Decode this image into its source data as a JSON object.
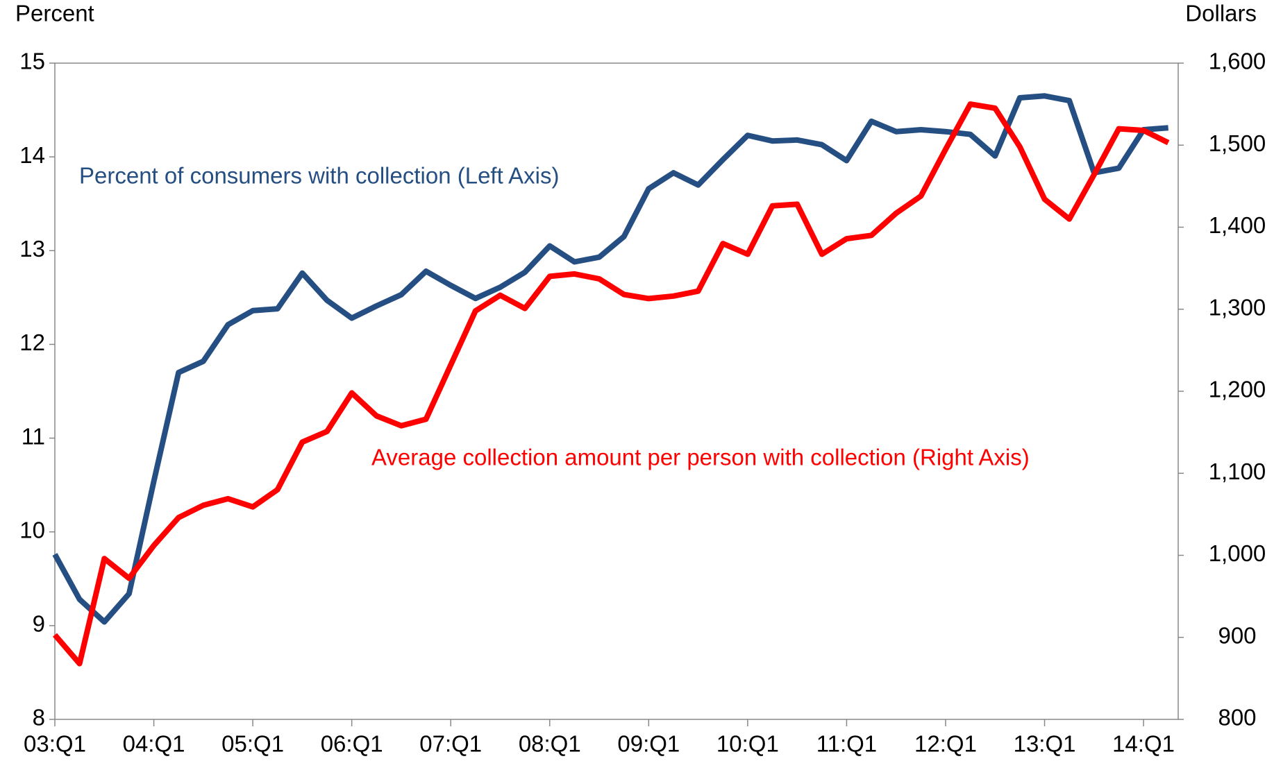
{
  "chart_data": {
    "type": "line",
    "y_label": "Percent",
    "y2_label": "Dollars",
    "categories": [
      "03:Q1",
      null,
      null,
      null,
      "04:Q1",
      null,
      null,
      null,
      "05:Q1",
      null,
      null,
      null,
      "06:Q1",
      null,
      null,
      null,
      "07:Q1",
      null,
      null,
      null,
      "08:Q1",
      null,
      null,
      null,
      "09:Q1",
      null,
      null,
      null,
      "10:Q1",
      null,
      null,
      null,
      "11:Q1",
      null,
      null,
      null,
      "12:Q1",
      null,
      null,
      null,
      "13:Q1",
      null,
      null,
      null,
      "14:Q1",
      null
    ],
    "ylim": [
      8,
      15
    ],
    "yticks": [
      8,
      9,
      10,
      11,
      12,
      13,
      14,
      15
    ],
    "y2lim": [
      800,
      1600
    ],
    "y2ticks": [
      800,
      900,
      {
        "value": 1000,
        "label": "1,000"
      },
      {
        "value": 1100,
        "label": "1,100"
      },
      {
        "value": 1200,
        "label": "1,200"
      },
      {
        "value": 1300,
        "label": "1,300"
      },
      {
        "value": 1400,
        "label": "1,400"
      },
      {
        "value": 1500,
        "label": "1,500"
      },
      {
        "value": 1600,
        "label": "1,600"
      }
    ],
    "grid": false,
    "series": [
      {
        "name": "Percent of consumers with collection (Left Axis)",
        "color": "#254f83",
        "axis": "y",
        "values": [
          9.76,
          9.28,
          9.04,
          9.34,
          10.54,
          11.7,
          11.82,
          12.21,
          12.36,
          12.38,
          12.76,
          12.47,
          12.28,
          12.41,
          12.53,
          12.78,
          12.63,
          12.49,
          12.61,
          12.77,
          13.05,
          12.88,
          12.93,
          13.15,
          13.66,
          13.83,
          13.7,
          13.97,
          14.23,
          14.17,
          14.18,
          14.13,
          13.96,
          14.38,
          14.27,
          14.29,
          14.27,
          14.24,
          14.01,
          14.63,
          14.65,
          14.6,
          13.83,
          13.88,
          14.29,
          14.31
        ]
      },
      {
        "name": "Average collection amount per person with collection (Right Axis)",
        "color": "#ff0000",
        "axis": "y2",
        "values": [
          903,
          868,
          996,
          972,
          1012,
          1046,
          1061,
          1069,
          1059,
          1080,
          1138,
          1151,
          1198,
          1170,
          1158,
          1166,
          1232,
          1298,
          1317,
          1301,
          1340,
          1343,
          1337,
          1318,
          1313,
          1316,
          1322,
          1380,
          1367,
          1426,
          1428,
          1367,
          1386,
          1390,
          1417,
          1438,
          1495,
          1550,
          1545,
          1498,
          1434,
          1410,
          1464,
          1520,
          1518,
          1503
        ]
      }
    ]
  }
}
